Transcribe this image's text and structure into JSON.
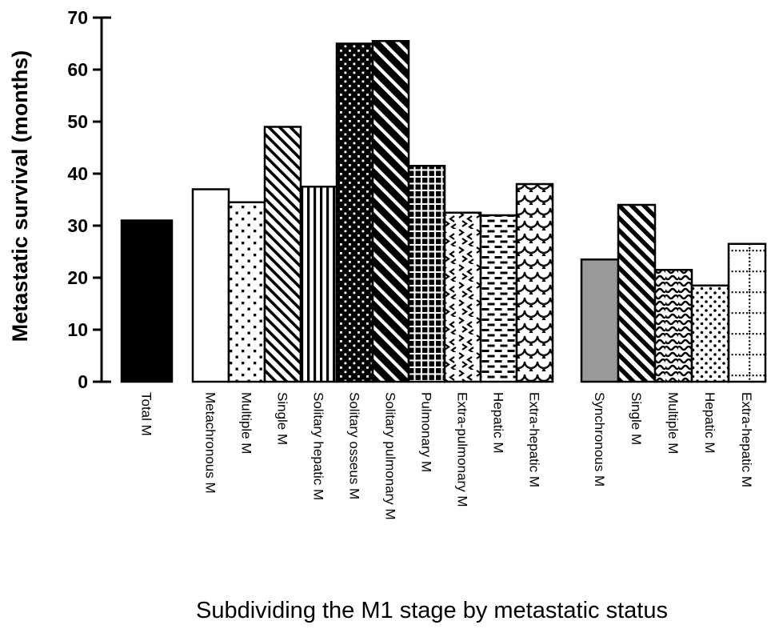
{
  "chart_data": {
    "type": "bar",
    "title": "",
    "xlabel": "Subdividing the M1 stage by metastatic status",
    "ylabel": "Metastatic survival (months)",
    "ylim": [
      0,
      70
    ],
    "yticks": [
      0,
      10,
      20,
      30,
      40,
      50,
      60,
      70
    ],
    "grid": false,
    "legend": "none",
    "groups": [
      {
        "name": "total",
        "bars": [
          {
            "label": "Total M",
            "value": 31,
            "pattern": "solid-black"
          }
        ]
      },
      {
        "name": "metachronous-subdivision",
        "bars": [
          {
            "label": "Metachronous M",
            "value": 37,
            "pattern": "plain-white"
          },
          {
            "label": "Multiple M",
            "value": 34.5,
            "pattern": "square-dots"
          },
          {
            "label": "Single M",
            "value": 49,
            "pattern": "diagonal-stripes"
          },
          {
            "label": "Solitary hepatic M",
            "value": 37.5,
            "pattern": "vertical-stripes"
          },
          {
            "label": "Solitary osseus M",
            "value": 65,
            "pattern": "white-dots-on-black"
          },
          {
            "label": "Solitary pulmonary M",
            "value": 65.5,
            "pattern": "thick-diagonal-stripes"
          },
          {
            "label": "Pulmonary M",
            "value": 41.5,
            "pattern": "waffle-grid"
          },
          {
            "label": "Extra-pulmonary M",
            "value": 32.5,
            "pattern": "chevrons"
          },
          {
            "label": "Hepatic M",
            "value": 32,
            "pattern": "horizontal-dashes"
          },
          {
            "label": "Extra-hepatic M",
            "value": 38,
            "pattern": "scales"
          }
        ]
      },
      {
        "name": "synchronous-subdivision",
        "bars": [
          {
            "label": "Synchronous M",
            "value": 23.5,
            "pattern": "solid-gray"
          },
          {
            "label": "Single M",
            "value": 34,
            "pattern": "bold-diagonal-stripes"
          },
          {
            "label": "Multiple M",
            "value": 21.5,
            "pattern": "waves"
          },
          {
            "label": "Hepatic M",
            "value": 18.5,
            "pattern": "round-dots"
          },
          {
            "label": "Extra-hepatic M",
            "value": 26.5,
            "pattern": "dotted-grid"
          }
        ]
      }
    ],
    "colors": {
      "bar_outline": "#000000",
      "solid_black": "#000000",
      "solid_gray": "#999999",
      "background": "#ffffff"
    }
  }
}
